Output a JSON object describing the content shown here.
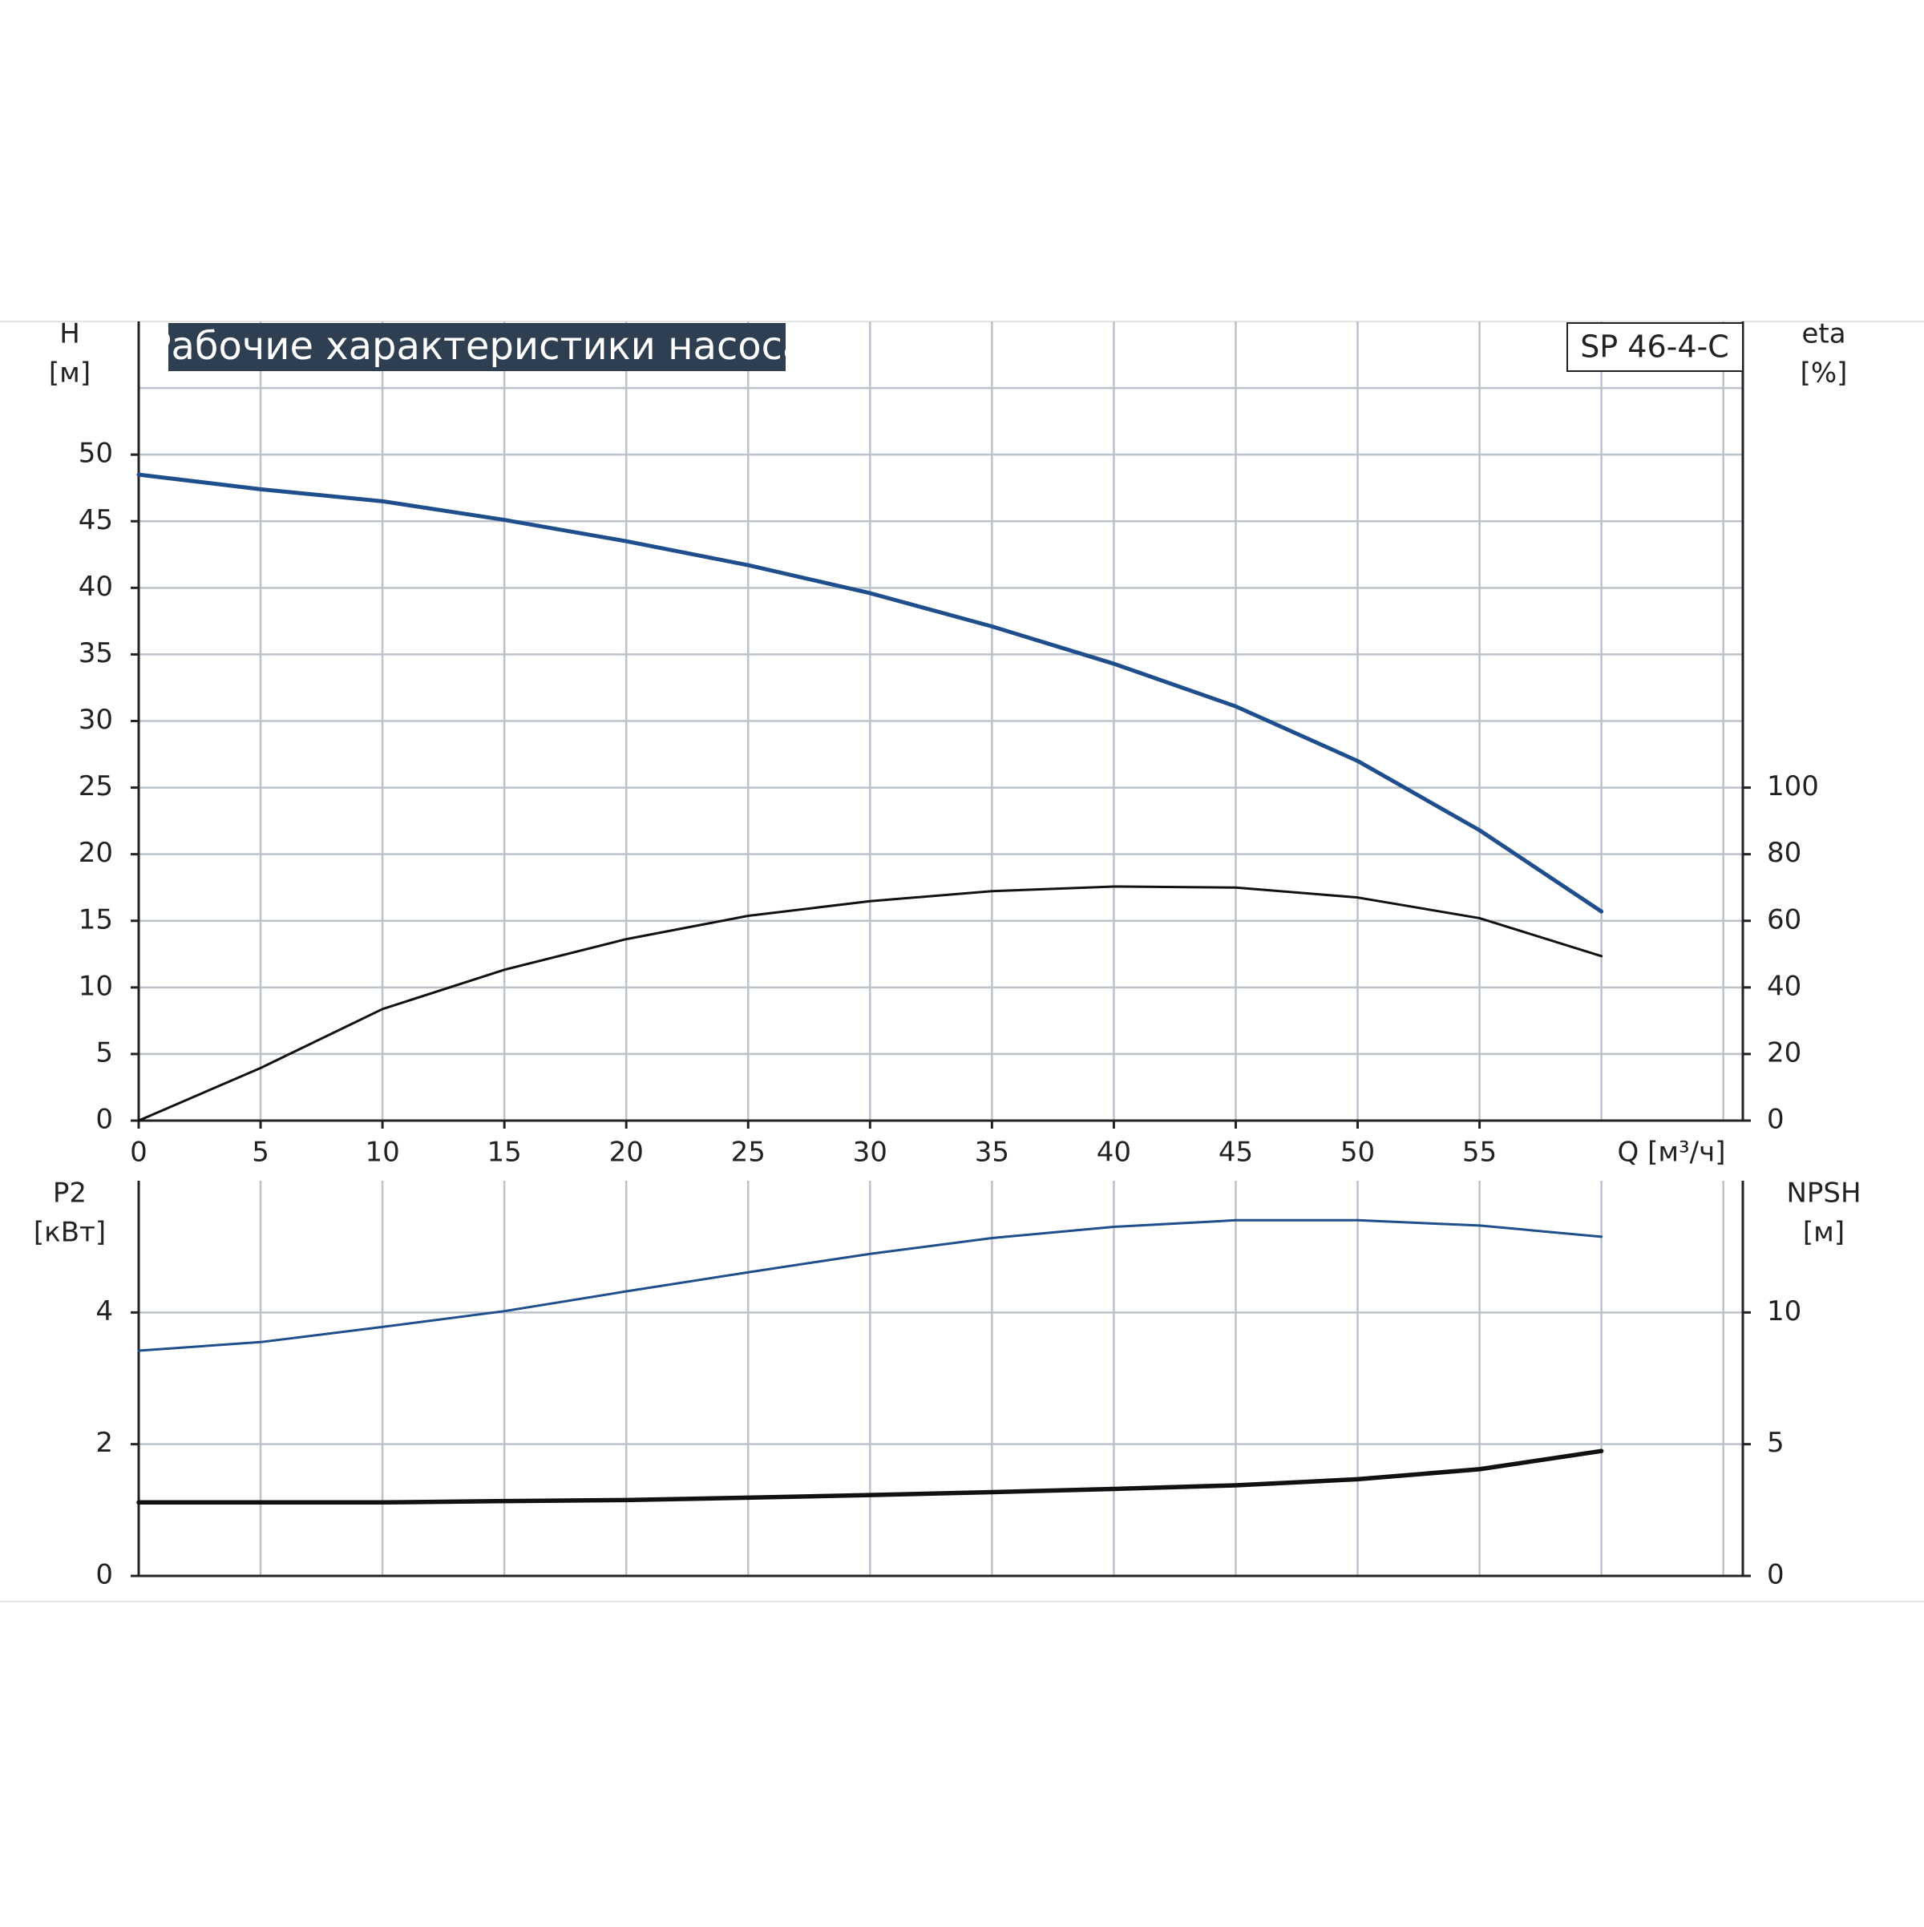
{
  "chart_data": [
    {
      "type": "line",
      "title": "Рабочие характеристики насоса",
      "model": "SP 46-4-C",
      "xlabel": "Q [м³/ч]",
      "ylabel": "H",
      "yunit": "[м]",
      "y2label": "eta",
      "y2unit": "[%]",
      "x": [
        0,
        5,
        10,
        15,
        20,
        25,
        30,
        35,
        40,
        45,
        50,
        55,
        60
      ],
      "xlim": [
        0,
        65.8
      ],
      "xticks": [
        0,
        5,
        10,
        15,
        20,
        25,
        30,
        35,
        40,
        45,
        50,
        55
      ],
      "xgrid": [
        0,
        5,
        10,
        15,
        20,
        25,
        30,
        35,
        40,
        45,
        50,
        55,
        60,
        65
      ],
      "ylim": [
        0,
        60
      ],
      "yticks": [
        0,
        5,
        10,
        15,
        20,
        25,
        30,
        35,
        40,
        45,
        50
      ],
      "ygrid": [
        0,
        5,
        10,
        15,
        20,
        25,
        30,
        35,
        40,
        45,
        50,
        55
      ],
      "y2lim": [
        0,
        240
      ],
      "y2ticks": [
        0,
        20,
        40,
        60,
        80,
        100
      ],
      "grid": true,
      "series": [
        {
          "color": "#1f4e8c",
          "values": [
            48.5,
            47.4,
            46.5,
            45.1,
            43.5,
            41.7,
            39.6,
            37.1,
            34.3,
            31.1,
            27.0,
            21.8,
            15.7
          ]
        },
        {
          "color": "#111111",
          "axis": "y2",
          "values": [
            0,
            15.8,
            33.5,
            45.3,
            54.5,
            61.5,
            65.9,
            68.9,
            70.3,
            70.0,
            67.0,
            60.8,
            49.4
          ]
        }
      ]
    },
    {
      "type": "line",
      "ylabel": "P2",
      "yunit": "[кВт]",
      "y2label": "NPSH",
      "y2unit": "[м]",
      "x": [
        0,
        5,
        10,
        15,
        20,
        25,
        30,
        35,
        40,
        45,
        50,
        55,
        60
      ],
      "xlim": [
        0,
        65.8
      ],
      "xgrid": [
        0,
        5,
        10,
        15,
        20,
        25,
        30,
        35,
        40,
        45,
        50,
        55,
        60,
        65
      ],
      "ylim": [
        0,
        6
      ],
      "yticks": [
        0,
        2,
        4
      ],
      "y2lim": [
        0,
        15
      ],
      "y2ticks": [
        0,
        5,
        10
      ],
      "grid": true,
      "series": [
        {
          "color": "#1f4e8c",
          "values": [
            3.42,
            3.55,
            3.78,
            4.02,
            4.32,
            4.61,
            4.89,
            5.13,
            5.3,
            5.4,
            5.4,
            5.32,
            5.15
          ]
        },
        {
          "color": "#111111",
          "axis": "y2",
          "values": [
            2.79,
            2.79,
            2.79,
            2.84,
            2.88,
            2.97,
            3.07,
            3.18,
            3.3,
            3.44,
            3.67,
            4.05,
            4.74
          ]
        }
      ]
    }
  ]
}
